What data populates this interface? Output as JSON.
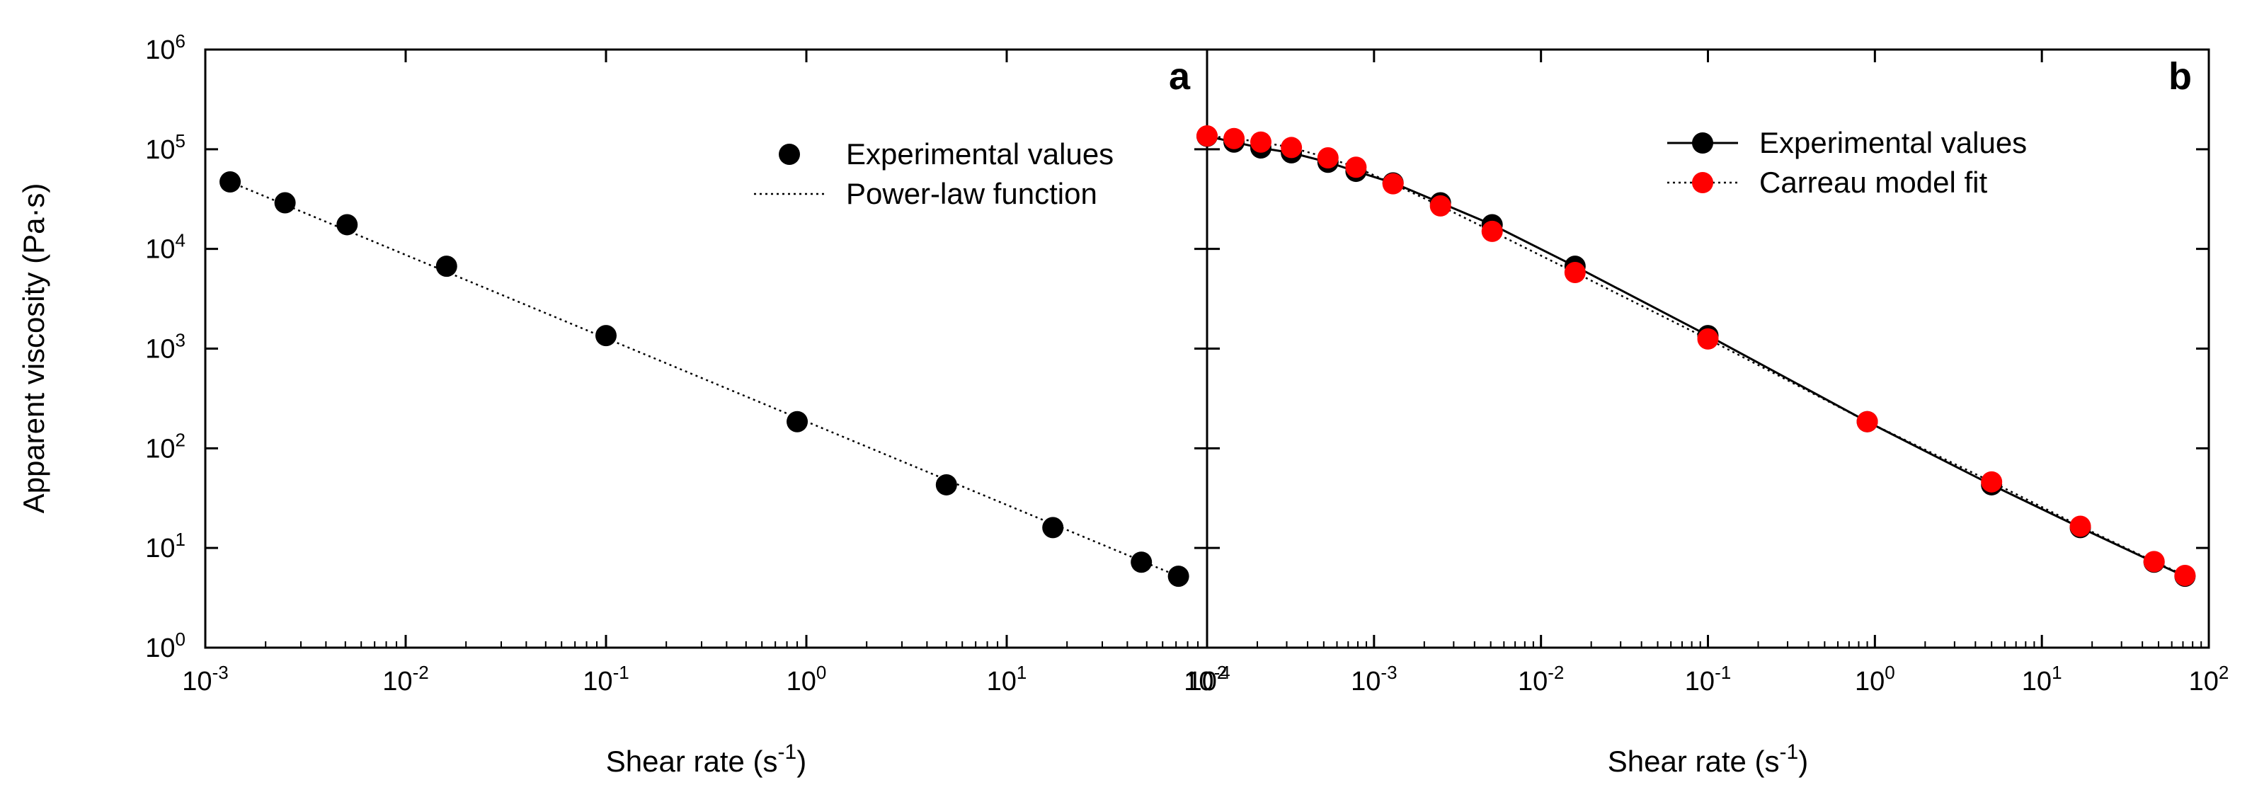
{
  "chart_data": [
    {
      "type": "scatter",
      "panel_label": "a",
      "xscale": "log",
      "yscale": "log",
      "xlim": [
        0.001,
        100
      ],
      "ylim": [
        1,
        1000000
      ],
      "x_tick_labels": [
        {
          "base": "10",
          "exp": "-3"
        },
        {
          "base": "10",
          "exp": "-2"
        },
        {
          "base": "10",
          "exp": "-1"
        },
        {
          "base": "10",
          "exp": "0"
        },
        {
          "base": "10",
          "exp": "1"
        },
        {
          "base": "10",
          "exp": "2"
        }
      ],
      "y_tick_labels": [
        {
          "base": "10",
          "exp": "0"
        },
        {
          "base": "10",
          "exp": "1"
        },
        {
          "base": "10",
          "exp": "2"
        },
        {
          "base": "10",
          "exp": "3"
        },
        {
          "base": "10",
          "exp": "4"
        },
        {
          "base": "10",
          "exp": "5"
        },
        {
          "base": "10",
          "exp": "6"
        }
      ],
      "xlabel": {
        "text": "Shear rate (s",
        "sup": "-1",
        "close": ")"
      },
      "ylabel": "Apparent viscosity (Pa·s)",
      "series": [
        {
          "name": "Experimental values",
          "style": "marker",
          "color": "#000000",
          "x": [
            0.00133,
            0.0025,
            0.0051,
            0.016,
            0.1,
            0.9,
            5,
            17,
            47,
            72
          ],
          "y": [
            47000,
            29000,
            17500,
            6700,
            1350,
            185,
            43,
            16,
            7.2,
            5.2
          ]
        },
        {
          "name": "Power-law function",
          "style": "dotted",
          "color": "#000000",
          "x": [
            0.00133,
            72
          ],
          "y": [
            47000,
            5.2
          ]
        }
      ],
      "legend": "top-right"
    },
    {
      "type": "line",
      "panel_label": "b",
      "xscale": "log",
      "yscale": "log",
      "xlim": [
        0.0001,
        100
      ],
      "ylim": [
        1,
        1000000
      ],
      "x_tick_labels": [
        {
          "base": "10",
          "exp": "-4"
        },
        {
          "base": "10",
          "exp": "-3"
        },
        {
          "base": "10",
          "exp": "-2"
        },
        {
          "base": "10",
          "exp": "-1"
        },
        {
          "base": "10",
          "exp": "0"
        },
        {
          "base": "10",
          "exp": "1"
        },
        {
          "base": "10",
          "exp": "2"
        }
      ],
      "xlabel": {
        "text": "Shear rate (s",
        "sup": "-1",
        "close": ")"
      },
      "series": [
        {
          "name": "Experimental values",
          "style": "solid-marker",
          "color": "#000000",
          "x": [
            0.0001,
            0.000145,
            0.00021,
            0.00032,
            0.00053,
            0.00078,
            0.0013,
            0.0025,
            0.0051,
            0.016,
            0.1,
            0.9,
            5,
            17,
            47,
            72
          ],
          "y": [
            135000,
            118000,
            103000,
            92000,
            74000,
            60000,
            46000,
            29000,
            17500,
            6700,
            1350,
            185,
            43,
            16,
            7.2,
            5.2
          ]
        },
        {
          "name": "Carreau model fit",
          "style": "dotted-marker",
          "color": "#ff0000",
          "x": [
            0.0001,
            0.000145,
            0.00021,
            0.00032,
            0.00053,
            0.00078,
            0.0013,
            0.0025,
            0.0051,
            0.016,
            0.1,
            0.9,
            5,
            17,
            47,
            72
          ],
          "y": [
            136000,
            128000,
            118000,
            104000,
            82000,
            66000,
            45000,
            27000,
            15000,
            5800,
            1250,
            185,
            46,
            16.5,
            7.3,
            5.3
          ]
        }
      ],
      "legend": "top-right"
    }
  ]
}
